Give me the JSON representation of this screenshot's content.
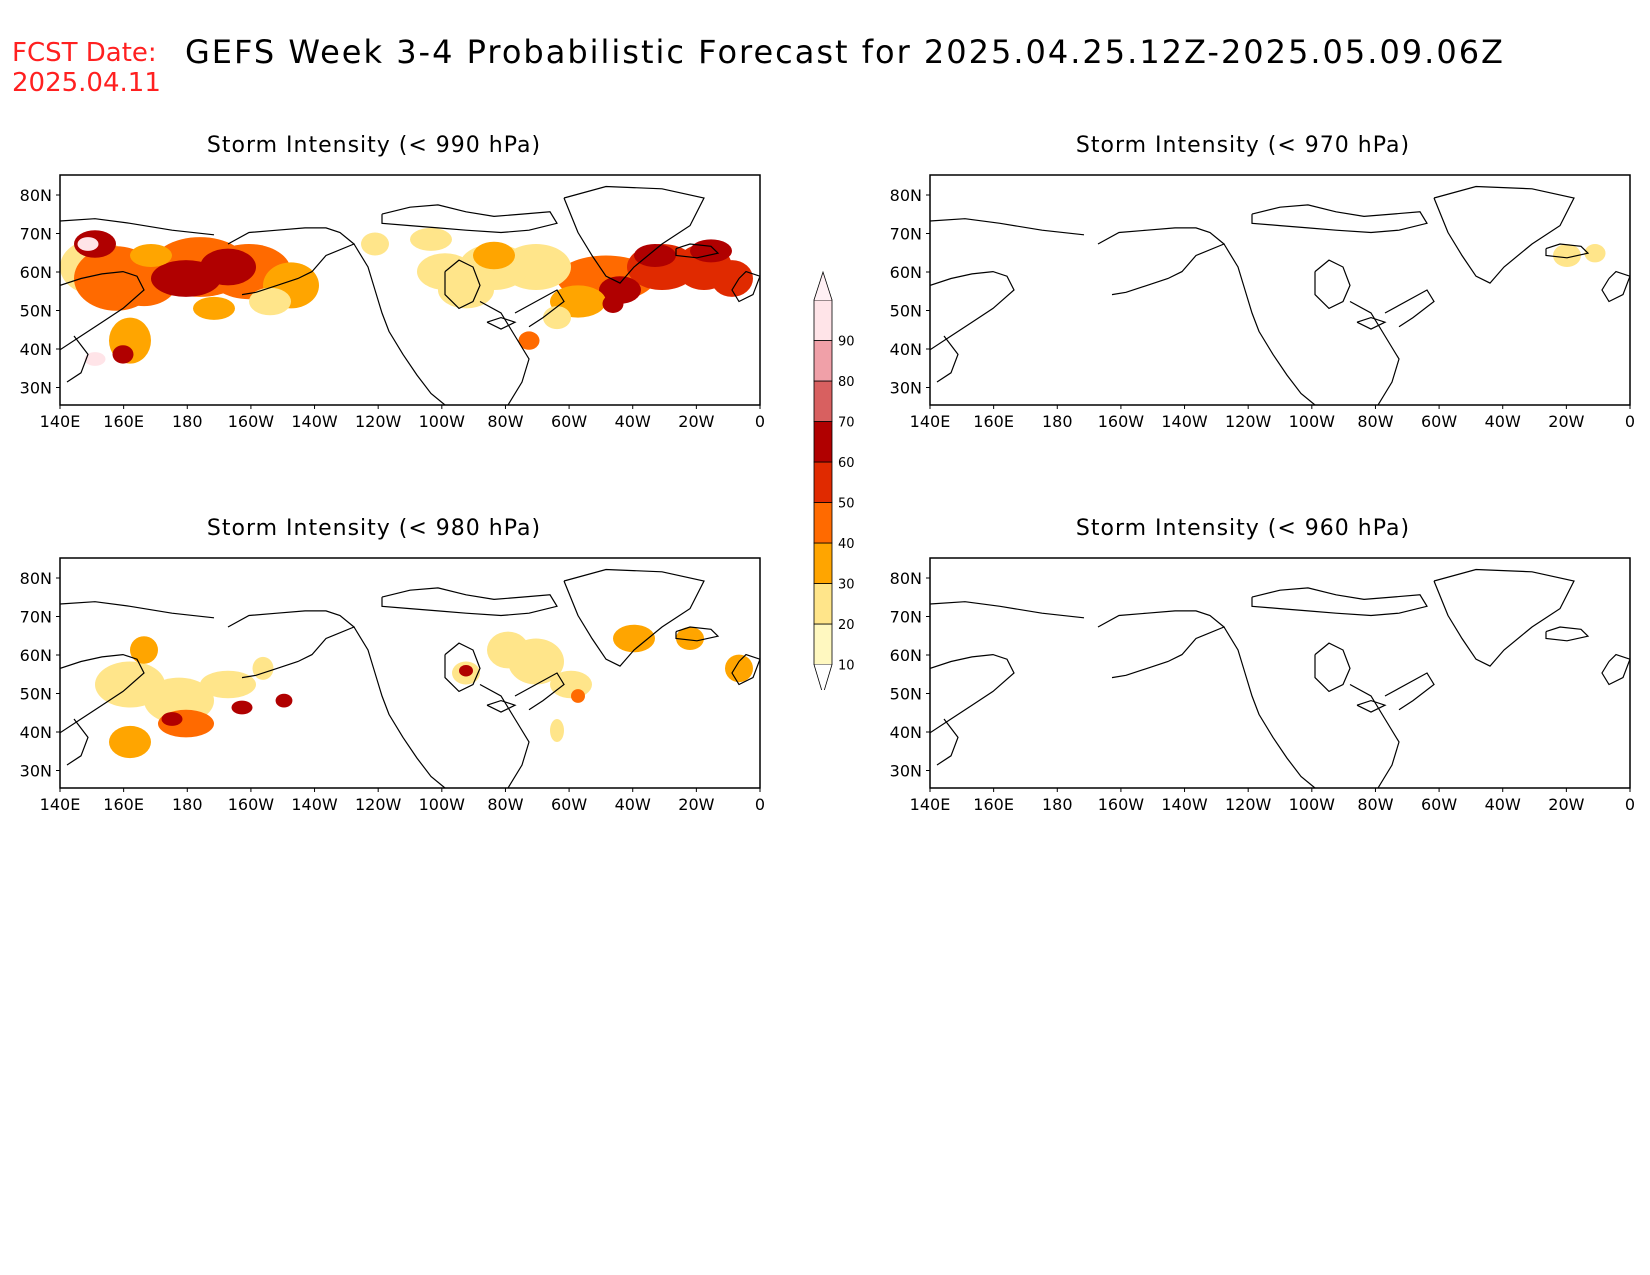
{
  "header": {
    "fcst_label": "FCST Date:",
    "fcst_date": "2025.04.11",
    "title": "GEFS Week 3-4 Probabilistic Forecast for 2025.04.25.12Z-2025.05.09.06Z"
  },
  "panels": [
    {
      "title": "Storm Intensity (< 990 hPa)"
    },
    {
      "title": "Storm Intensity (< 970 hPa)"
    },
    {
      "title": "Storm Intensity (< 980 hPa)"
    },
    {
      "title": "Storm Intensity (< 960 hPa)"
    }
  ],
  "axes": {
    "lat_labels": [
      "80N",
      "70N",
      "60N",
      "50N",
      "40N",
      "30N"
    ],
    "lon_labels": [
      "140E",
      "160E",
      "180",
      "160W",
      "140W",
      "120W",
      "100W",
      "80W",
      "60W",
      "40W",
      "20W",
      "0"
    ]
  },
  "colorbar": {
    "levels": [
      "10",
      "20",
      "30",
      "40",
      "50",
      "60",
      "70",
      "80",
      "90"
    ],
    "colors": [
      "#fff8c0",
      "#ffe58a",
      "#ffa500",
      "#ff6a00",
      "#e02a00",
      "#b00000",
      "#d86060",
      "#f0a0a8",
      "#ffe4e8"
    ]
  }
}
